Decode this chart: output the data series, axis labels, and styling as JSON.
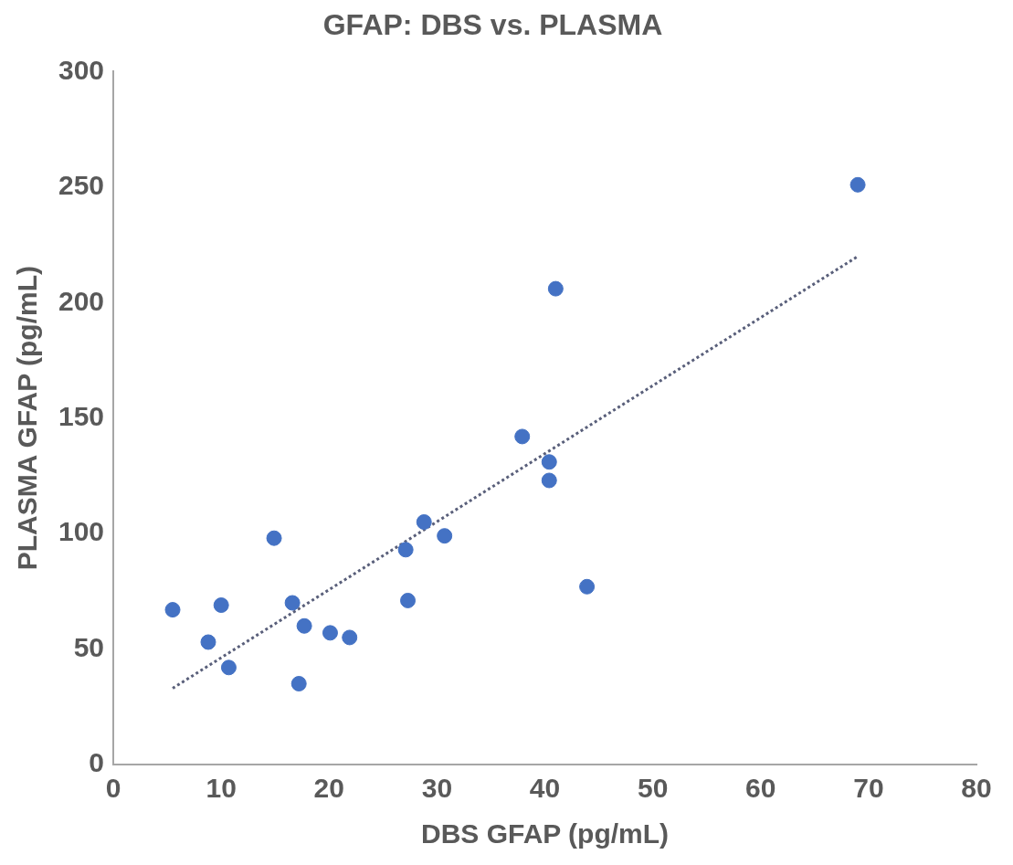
{
  "chart_data": {
    "type": "scatter",
    "title": "GFAP: DBS vs. PLASMA",
    "xlabel": "DBS GFAP (pg/mL)",
    "ylabel": "PLASMA GFAP (pg/mL)",
    "xlim": [
      0,
      80
    ],
    "xticks": [
      0,
      10,
      20,
      30,
      40,
      50,
      60,
      70,
      80
    ],
    "ylim": [
      0,
      300
    ],
    "yticks": [
      0,
      50,
      100,
      150,
      200,
      250,
      300
    ],
    "grid": false,
    "legend": false,
    "marker": "circle",
    "series": [
      {
        "color": "#4472c4",
        "x": [
          5.5,
          8.8,
          10.0,
          10.7,
          14.9,
          16.6,
          17.2,
          17.7,
          20.1,
          21.9,
          27.1,
          27.3,
          28.8,
          30.7,
          37.9,
          40.4,
          40.4,
          41.0,
          43.9,
          69.0
        ],
        "values": [
          67,
          53,
          69,
          42,
          98,
          70,
          35,
          60,
          57,
          55,
          93,
          71,
          105,
          99,
          142,
          131,
          123,
          206,
          77,
          251
        ]
      },
      {
        "type": "line",
        "marker": "none",
        "color": "#595f7a",
        "line_style": "dotted",
        "x": [
          5.5,
          69.0
        ],
        "values": [
          33,
          220
        ]
      }
    ]
  }
}
